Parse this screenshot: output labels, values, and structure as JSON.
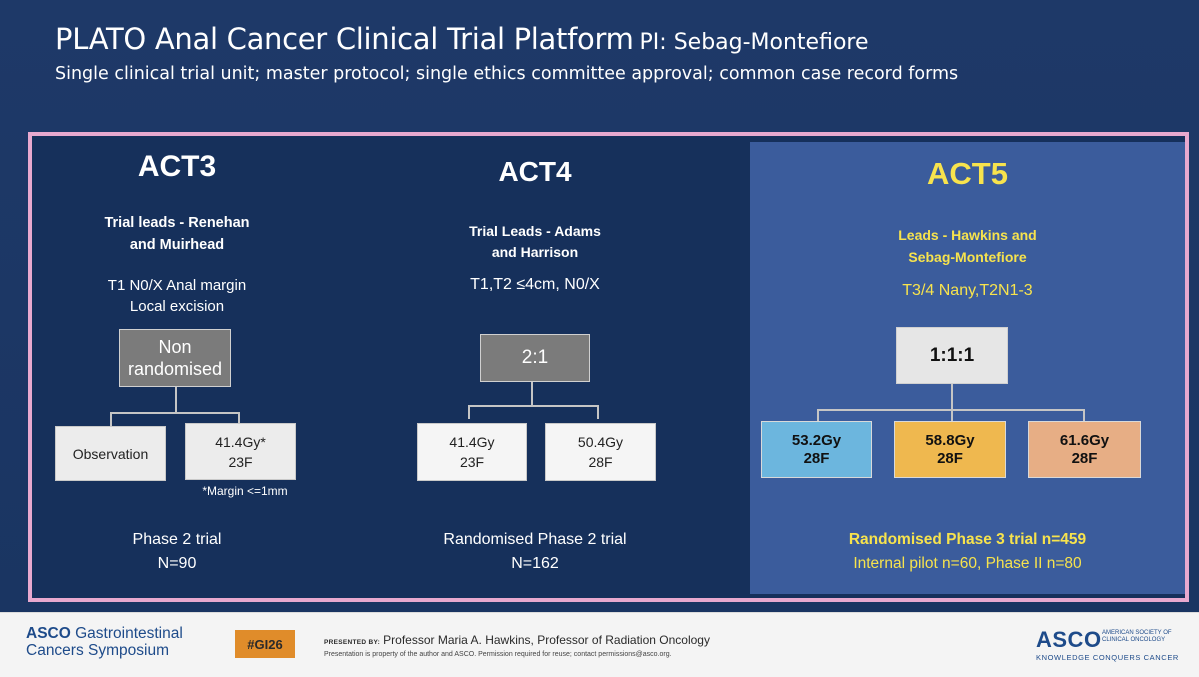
{
  "header": {
    "title": "PLATO Anal Cancer Clinical Trial Platform",
    "pi": "PI: Sebag-Montefiore",
    "subtitle": "Single clinical trial unit; master protocol; single ethics committee approval; common case record forms"
  },
  "act3": {
    "title": "ACT3",
    "lead_line1": "Trial leads - Renehan",
    "lead_line2": "and Muirhead",
    "criteria_line1": "T1 N0/X Anal margin",
    "criteria_line2": "Local excision",
    "allocation_line1": "Non",
    "allocation_line2": "randomised",
    "arms": [
      {
        "label": "Observation"
      },
      {
        "dose": "41.4Gy*",
        "fractions": "23F"
      }
    ],
    "footnote": "*Margin <=1mm",
    "phase": "Phase 2 trial",
    "n": "N=90"
  },
  "act4": {
    "title": "ACT4",
    "lead_line1": "Trial Leads - Adams",
    "lead_line2": "and Harrison",
    "criteria": "T1,T2 ≤4cm, N0/X",
    "allocation": "2:1",
    "arms": [
      {
        "dose": "41.4Gy",
        "fractions": "23F"
      },
      {
        "dose": "50.4Gy",
        "fractions": "28F"
      }
    ],
    "phase": "Randomised Phase 2 trial",
    "n": "N=162"
  },
  "act5": {
    "title": "ACT5",
    "lead_line1": "Leads - Hawkins and",
    "lead_line2": "Sebag-Montefiore",
    "criteria": "T3/4 Nany,T2N1-3",
    "allocation": "1:1:1",
    "arms": [
      {
        "dose": "53.2Gy",
        "fractions": "28F",
        "color": "#6cb6de"
      },
      {
        "dose": "58.8Gy",
        "fractions": "28F",
        "color": "#efb84f"
      },
      {
        "dose": "61.6Gy",
        "fractions": "28F",
        "color": "#e7ae85"
      }
    ],
    "phase": "Randomised Phase 3 trial n=459",
    "pilot": "Internal pilot n=60, Phase II n=80"
  },
  "colors": {
    "background": "#1b3563",
    "frame_border": "#e8a9cf",
    "act5_panel": "#3b5c9c",
    "act5_text": "#f7e34d",
    "hashtag_bg": "#e08c2a",
    "asco_blue": "#1e4b8a"
  },
  "footer": {
    "symposium_brand": "ASCO",
    "symposium_line1": "Gastrointestinal",
    "symposium_line2": "Cancers Symposium",
    "hashtag": "#GI26",
    "presented_by": "PRESENTED BY:",
    "presenter": "Professor Maria A. Hawkins, Professor of Radiation Oncology",
    "notice": "Presentation is property of the author and ASCO. Permission required for reuse; contact permissions@asco.org.",
    "logo": "ASCO",
    "logo_subtext": "AMERICAN SOCIETY OF CLINICAL ONCOLOGY",
    "tagline": "KNOWLEDGE CONQUERS CANCER"
  }
}
